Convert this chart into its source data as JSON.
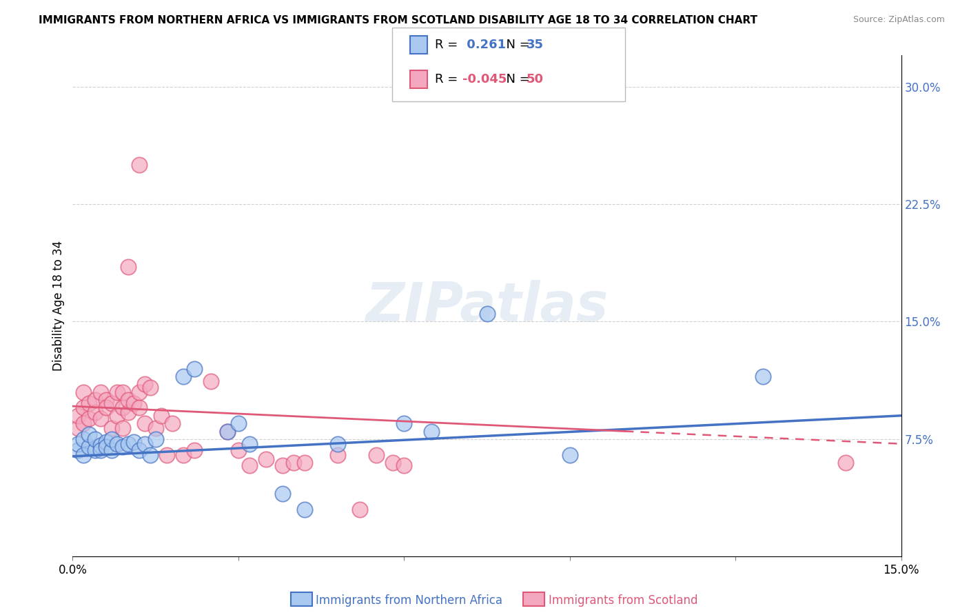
{
  "title": "IMMIGRANTS FROM NORTHERN AFRICA VS IMMIGRANTS FROM SCOTLAND DISABILITY AGE 18 TO 34 CORRELATION CHART",
  "source": "Source: ZipAtlas.com",
  "xlabel_blue": "Immigrants from Northern Africa",
  "xlabel_pink": "Immigrants from Scotland",
  "ylabel": "Disability Age 18 to 34",
  "xlim": [
    0.0,
    0.15
  ],
  "ylim": [
    0.0,
    0.32
  ],
  "yticks_right": [
    0.075,
    0.15,
    0.225,
    0.3
  ],
  "ytick_labels_right": [
    "7.5%",
    "15.0%",
    "22.5%",
    "30.0%"
  ],
  "R_blue": 0.261,
  "N_blue": 35,
  "R_pink": -0.045,
  "N_pink": 50,
  "blue_color": "#a8c8f0",
  "pink_color": "#f4a8c0",
  "line_blue": "#4472c4",
  "line_pink": "#e05878",
  "watermark": "ZIPatlas",
  "blue_x": [
    0.001,
    0.001,
    0.002,
    0.002,
    0.003,
    0.003,
    0.004,
    0.004,
    0.005,
    0.005,
    0.006,
    0.006,
    0.007,
    0.007,
    0.008,
    0.009,
    0.01,
    0.011,
    0.012,
    0.013,
    0.014,
    0.015,
    0.02,
    0.022,
    0.028,
    0.03,
    0.032,
    0.038,
    0.042,
    0.048,
    0.06,
    0.065,
    0.075,
    0.09,
    0.125
  ],
  "blue_y": [
    0.068,
    0.072,
    0.065,
    0.075,
    0.07,
    0.078,
    0.068,
    0.075,
    0.071,
    0.068,
    0.073,
    0.07,
    0.068,
    0.075,
    0.072,
    0.07,
    0.072,
    0.073,
    0.068,
    0.072,
    0.065,
    0.075,
    0.115,
    0.12,
    0.08,
    0.085,
    0.072,
    0.04,
    0.03,
    0.072,
    0.085,
    0.08,
    0.155,
    0.065,
    0.115
  ],
  "pink_x": [
    0.001,
    0.001,
    0.002,
    0.002,
    0.002,
    0.003,
    0.003,
    0.004,
    0.004,
    0.005,
    0.005,
    0.006,
    0.006,
    0.007,
    0.007,
    0.008,
    0.008,
    0.009,
    0.009,
    0.009,
    0.01,
    0.01,
    0.011,
    0.012,
    0.012,
    0.013,
    0.013,
    0.014,
    0.015,
    0.016,
    0.017,
    0.018,
    0.02,
    0.022,
    0.025,
    0.028,
    0.03,
    0.032,
    0.035,
    0.038,
    0.04,
    0.042,
    0.048,
    0.052,
    0.055,
    0.058,
    0.06,
    0.012,
    0.01,
    0.14
  ],
  "pink_y": [
    0.082,
    0.09,
    0.085,
    0.095,
    0.105,
    0.088,
    0.098,
    0.092,
    0.1,
    0.105,
    0.088,
    0.1,
    0.095,
    0.082,
    0.098,
    0.09,
    0.105,
    0.082,
    0.095,
    0.105,
    0.092,
    0.1,
    0.098,
    0.095,
    0.105,
    0.085,
    0.11,
    0.108,
    0.082,
    0.09,
    0.065,
    0.085,
    0.065,
    0.068,
    0.112,
    0.08,
    0.068,
    0.058,
    0.062,
    0.058,
    0.06,
    0.06,
    0.065,
    0.03,
    0.065,
    0.06,
    0.058,
    0.25,
    0.185,
    0.06
  ],
  "blue_line_start_y": 0.064,
  "blue_line_end_y": 0.09,
  "pink_line_start_y": 0.096,
  "pink_line_end_y": 0.072
}
